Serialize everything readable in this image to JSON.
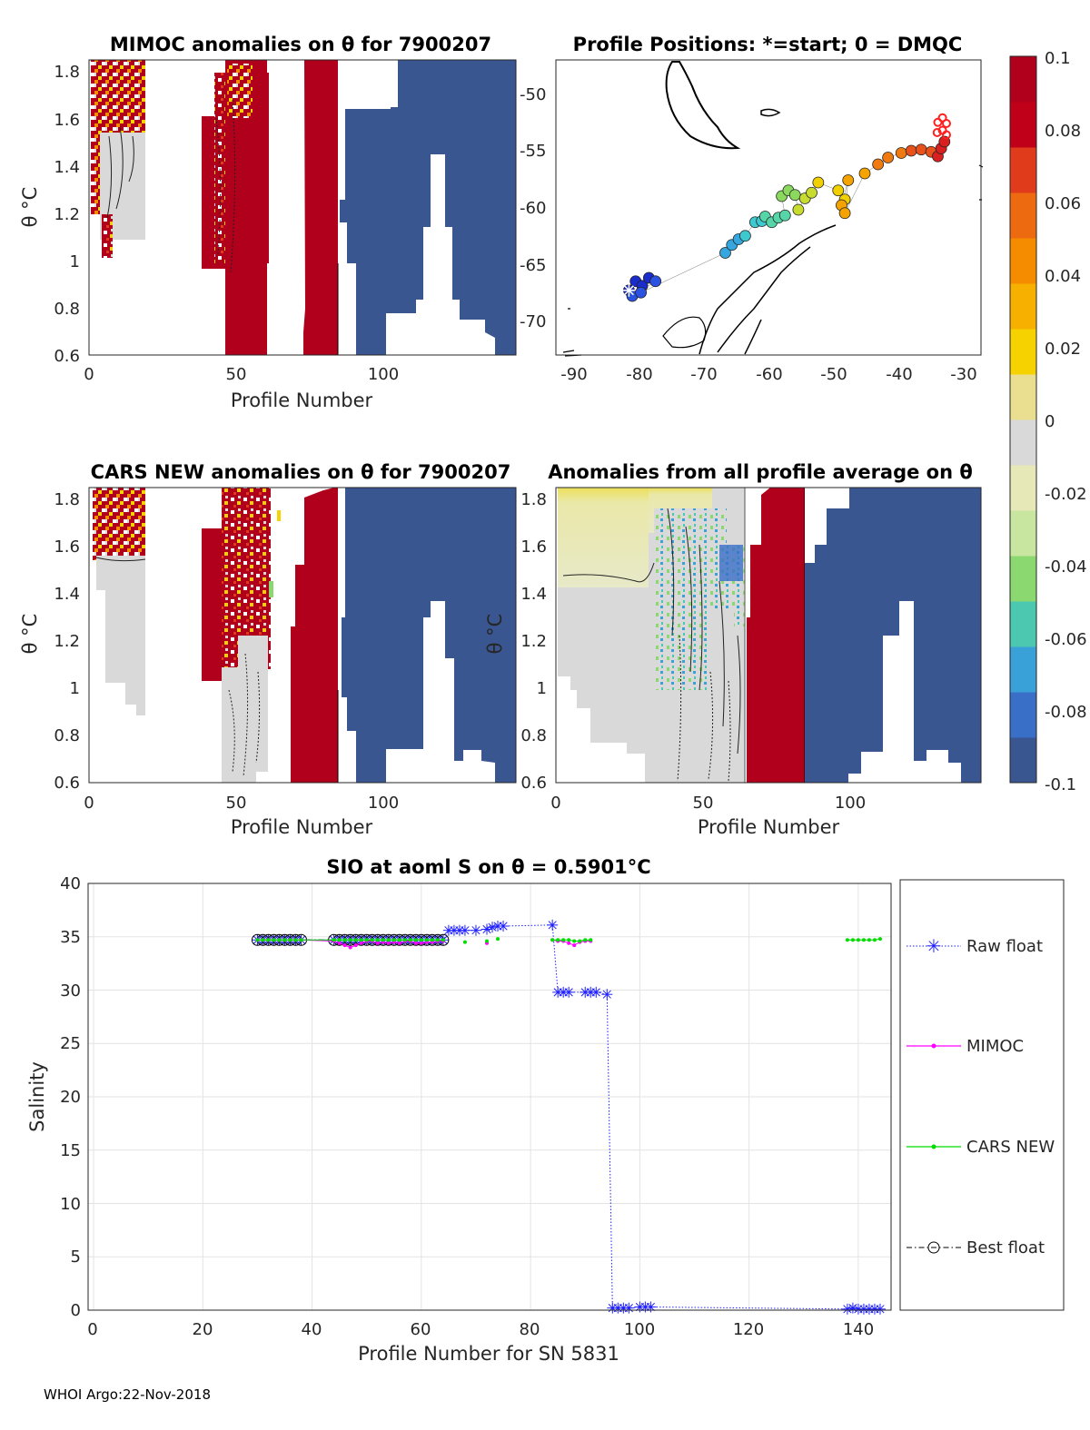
{
  "footer": "WHOI Argo:22-Nov-2018",
  "colors": {
    "raw": "#1f1fff",
    "mimoc": "#ff00ff",
    "cars": "#00dd00",
    "best": "#000000",
    "high": "#b0001c",
    "low": "#3a5690",
    "zero": "#d9d9d9"
  },
  "colorbar": {
    "ticks": [
      "0.1",
      "0.08",
      "0.06",
      "0.04",
      "0.02",
      "0",
      "-0.02",
      "-0.04",
      "-0.06",
      "-0.08",
      "-0.1"
    ],
    "range": [
      -0.1,
      0.1
    ],
    "colors": [
      "#3a5690",
      "#3a6fc8",
      "#3aa0d8",
      "#4cc8b0",
      "#8cd870",
      "#c8e6a0",
      "#e6e8b8",
      "#d9d9d9",
      "#eadf90",
      "#f5d200",
      "#f8b000",
      "#f58c00",
      "#ee6a10",
      "#e03c1c",
      "#c00018",
      "#b0001c"
    ]
  },
  "panels": {
    "mimoc": {
      "title": "MIMOC anomalies on θ  for 7900207",
      "xlabel": "Profile Number",
      "ylabel": "θ °C",
      "xticks": [
        "0",
        "50",
        "100"
      ],
      "yticks": [
        "1.8",
        "1.6",
        "1.4",
        "1.2",
        "1",
        "0.8",
        "0.6"
      ]
    },
    "positions": {
      "title": "Profile Positions: *=start; 0 = DMQC",
      "xticks": [
        "-90",
        "-80",
        "-70",
        "-60",
        "-50",
        "-40",
        "-30"
      ],
      "yticks": [
        "-50",
        "-55",
        "-60",
        "-65",
        "-70"
      ]
    },
    "cars": {
      "title": "CARS NEW anomalies on θ for 7900207",
      "xlabel": "Profile Number",
      "ylabel": "θ °C",
      "xticks": [
        "0",
        "50",
        "100"
      ],
      "yticks": [
        "1.8",
        "1.6",
        "1.4",
        "1.2",
        "1",
        "0.8",
        "0.6"
      ]
    },
    "average": {
      "title": "Anomalies from all profile average on θ",
      "xlabel": "Profile Number",
      "ylabel": "θ °C",
      "xticks": [
        "0",
        "50",
        "100"
      ],
      "yticks": [
        "1.8",
        "1.6",
        "1.4",
        "1.2",
        "1",
        "0.8",
        "0.6"
      ]
    }
  },
  "chart_data": [
    {
      "type": "heatmap",
      "title": "MIMOC anomalies on θ  for 7900207",
      "xlabel": "Profile Number",
      "ylabel": "θ °C",
      "xlim": [
        0,
        145
      ],
      "ylim": [
        0.59,
        1.85
      ],
      "blocks": [
        {
          "x0": 3,
          "x1": 11,
          "y0": 1.03,
          "y1": 1.85,
          "class": "noisy-high"
        },
        {
          "x0": 11,
          "x1": 20,
          "y0": 1.45,
          "y1": 1.85,
          "class": "noisy-high"
        },
        {
          "x0": 13,
          "x1": 20,
          "y0": 1.09,
          "y1": 1.45,
          "class": "zero"
        },
        {
          "x0": 40,
          "x1": 47,
          "y0": 0.97,
          "y1": 1.62,
          "class": "high"
        },
        {
          "x0": 47,
          "x1": 60,
          "y0": 0.59,
          "y1": 1.85,
          "class": "noisy-high"
        },
        {
          "x0": 72,
          "x1": 85,
          "y0": 0.59,
          "y1": 1.85,
          "class": "high"
        },
        {
          "x0": 84,
          "x1": 145,
          "y0": 0.59,
          "y1": 1.85,
          "class": "low"
        }
      ]
    },
    {
      "type": "scatter",
      "title": "Profile Positions: *=start; 0 = DMQC",
      "xlim": [
        -92,
        -28
      ],
      "ylim": [
        -73,
        -47
      ],
      "points": [
        [
          -81,
          -67.3
        ],
        [
          -80,
          -66.5
        ],
        [
          -79,
          -66.9
        ],
        [
          -78,
          -66.2
        ],
        [
          -77,
          -66.5
        ],
        [
          -80.5,
          -67.8
        ],
        [
          -79.2,
          -67.5
        ],
        [
          -66.5,
          -64
        ],
        [
          -65.5,
          -63.3
        ],
        [
          -64.5,
          -62.8
        ],
        [
          -63.5,
          -62.5
        ],
        [
          -62,
          -61.3
        ],
        [
          -61,
          -61.2
        ],
        [
          -60.5,
          -60.8
        ],
        [
          -59.5,
          -61.3
        ],
        [
          -58.5,
          -60.9
        ],
        [
          -57.5,
          -60.7
        ],
        [
          -58,
          -59
        ],
        [
          -57,
          -58.5
        ],
        [
          -56,
          -58.9
        ],
        [
          -55.5,
          -60.2
        ],
        [
          -54.5,
          -59.2
        ],
        [
          -53.5,
          -58.7
        ],
        [
          -52.5,
          -57.8
        ],
        [
          -49.5,
          -58.5
        ],
        [
          -48.5,
          -59.3
        ],
        [
          -49,
          -59.8
        ],
        [
          -48,
          -57.6
        ],
        [
          -48.5,
          -60.5
        ],
        [
          -45.5,
          -57
        ],
        [
          -43.5,
          -56.2
        ],
        [
          -42,
          -55.6
        ],
        [
          -40,
          -55.2
        ],
        [
          -38.5,
          -55
        ],
        [
          -37,
          -54.9
        ],
        [
          -35.5,
          -55.1
        ],
        [
          -34.5,
          -55.5
        ],
        [
          -34,
          -54.8
        ],
        [
          -33.5,
          -54.2
        ]
      ],
      "start_marker": [
        -81,
        -67.3
      ]
    },
    {
      "type": "heatmap",
      "title": "CARS NEW anomalies on θ for 7900207",
      "xlabel": "Profile Number",
      "ylabel": "θ °C",
      "xlim": [
        0,
        145
      ],
      "ylim": [
        0.59,
        1.85
      ],
      "blocks": [
        {
          "x0": 3,
          "x1": 19,
          "y0": 1.62,
          "y1": 1.85,
          "class": "noisy-high"
        },
        {
          "x0": 5,
          "x1": 19,
          "y0": 0.87,
          "y1": 1.62,
          "class": "zero"
        },
        {
          "x0": 38,
          "x1": 46,
          "y0": 1.04,
          "y1": 1.68,
          "class": "high"
        },
        {
          "x0": 46,
          "x1": 61,
          "y0": 0.59,
          "y1": 1.85,
          "class": "noisy-high"
        },
        {
          "x0": 68,
          "x1": 85,
          "y0": 0.59,
          "y1": 1.83,
          "class": "high"
        },
        {
          "x0": 84,
          "x1": 145,
          "y0": 0.59,
          "y1": 1.85,
          "class": "low"
        }
      ]
    },
    {
      "type": "heatmap",
      "title": "Anomalies from all profile average on θ",
      "xlabel": "Profile Number",
      "ylabel": "θ °C",
      "xlim": [
        0,
        145
      ],
      "ylim": [
        0.59,
        1.85
      ],
      "blocks": [
        {
          "x0": 2,
          "x1": 50,
          "y0": 1.48,
          "y1": 1.85,
          "class": "slightly-positive"
        },
        {
          "x0": 2,
          "x1": 65,
          "y0": 0.59,
          "y1": 1.48,
          "class": "zero"
        },
        {
          "x0": 55,
          "x1": 65,
          "y0": 1.3,
          "y1": 1.7,
          "class": "negative"
        },
        {
          "x0": 65,
          "x1": 85,
          "y0": 0.59,
          "y1": 1.85,
          "class": "high"
        },
        {
          "x0": 85,
          "x1": 145,
          "y0": 0.59,
          "y1": 1.85,
          "class": "low"
        }
      ]
    },
    {
      "type": "line",
      "title": "SIO at aoml S on θ = 0.5901°C",
      "xlabel": "Profile Number for SN 5831",
      "ylabel": "Salinity",
      "xlim": [
        -1,
        146
      ],
      "ylim": [
        0,
        40
      ],
      "xticks": [
        "0",
        "20",
        "40",
        "60",
        "80",
        "100",
        "120",
        "140"
      ],
      "yticks": [
        "40",
        "35",
        "30",
        "25",
        "20",
        "15",
        "10",
        "5",
        "0"
      ],
      "grid": true,
      "legend": "right-outside",
      "series": [
        {
          "name": "Raw float",
          "style": "blue dotted, asterisk markers",
          "x": [
            30,
            31,
            32,
            33,
            34,
            35,
            36,
            37,
            38,
            44,
            45,
            46,
            47,
            48,
            49,
            50,
            51,
            52,
            53,
            54,
            55,
            56,
            57,
            58,
            59,
            60,
            61,
            62,
            63,
            64,
            65,
            66,
            67,
            68,
            70,
            72,
            73,
            74,
            75,
            84,
            85,
            86,
            87,
            90,
            91,
            92,
            94,
            95,
            96,
            97,
            98,
            100,
            101,
            102,
            138,
            139,
            140,
            141,
            142,
            143,
            144
          ],
          "y": [
            34.7,
            34.7,
            34.7,
            34.7,
            34.7,
            34.7,
            34.7,
            34.7,
            34.7,
            34.7,
            34.7,
            34.7,
            34.7,
            34.7,
            34.7,
            34.7,
            34.7,
            34.7,
            34.7,
            34.7,
            34.7,
            34.7,
            34.7,
            34.7,
            34.7,
            34.7,
            34.7,
            34.7,
            34.7,
            34.7,
            35.6,
            35.6,
            35.6,
            35.6,
            35.6,
            35.7,
            35.9,
            36.0,
            36.0,
            36.1,
            29.8,
            29.8,
            29.8,
            29.8,
            29.8,
            29.8,
            29.6,
            0.2,
            0.2,
            0.2,
            0.2,
            0.3,
            0.3,
            0.3,
            0.1,
            0.2,
            0.1,
            0.1,
            0.1,
            0.1,
            0.1
          ]
        },
        {
          "name": "MIMOC",
          "style": "magenta line, dot markers",
          "x": [
            30,
            31,
            32,
            33,
            34,
            35,
            36,
            37,
            38,
            44,
            45,
            46,
            47,
            48,
            49,
            50,
            51,
            52,
            53,
            54,
            55,
            56,
            57,
            58,
            59,
            60,
            61,
            62,
            63,
            64,
            72,
            84,
            85,
            86,
            87,
            88,
            89,
            90,
            91
          ],
          "y": [
            34.7,
            34.7,
            34.7,
            34.7,
            34.7,
            34.7,
            34.7,
            34.7,
            34.7,
            34.6,
            34.4,
            34.2,
            34.0,
            34.2,
            34.4,
            34.6,
            34.6,
            34.4,
            34.5,
            34.4,
            34.5,
            34.4,
            34.6,
            34.6,
            34.4,
            34.4,
            34.5,
            34.5,
            34.6,
            34.6,
            34.4,
            34.7,
            34.6,
            34.6,
            34.4,
            34.2,
            34.5,
            34.6,
            34.6
          ]
        },
        {
          "name": "CARS NEW",
          "style": "green line, dot markers",
          "x": [
            30,
            31,
            32,
            33,
            34,
            35,
            36,
            37,
            38,
            44,
            45,
            46,
            47,
            48,
            49,
            50,
            51,
            52,
            53,
            54,
            55,
            56,
            57,
            58,
            59,
            60,
            61,
            62,
            63,
            64,
            68,
            72,
            74,
            84,
            85,
            86,
            87,
            88,
            89,
            90,
            91,
            138,
            139,
            140,
            141,
            142,
            143,
            144
          ],
          "y": [
            34.7,
            34.7,
            34.7,
            34.7,
            34.7,
            34.7,
            34.7,
            34.7,
            34.7,
            34.7,
            34.7,
            34.7,
            34.7,
            34.7,
            34.7,
            34.7,
            34.7,
            34.7,
            34.7,
            34.7,
            34.7,
            34.7,
            34.7,
            34.7,
            34.7,
            34.7,
            34.7,
            34.7,
            34.7,
            34.7,
            34.5,
            34.6,
            34.8,
            34.7,
            34.7,
            34.7,
            34.7,
            34.6,
            34.6,
            34.7,
            34.7,
            34.7,
            34.7,
            34.7,
            34.7,
            34.7,
            34.7,
            34.8
          ]
        },
        {
          "name": "Best float",
          "style": "black dash-dot, open circle markers",
          "x": [
            30,
            31,
            32,
            33,
            34,
            35,
            36,
            37,
            38,
            44,
            45,
            46,
            47,
            48,
            49,
            50,
            51,
            52,
            53,
            54,
            55,
            56,
            57,
            58,
            59,
            60,
            61,
            62,
            63,
            64
          ],
          "y": [
            34.7,
            34.7,
            34.7,
            34.7,
            34.7,
            34.7,
            34.7,
            34.7,
            34.7,
            34.7,
            34.7,
            34.7,
            34.7,
            34.7,
            34.7,
            34.7,
            34.7,
            34.7,
            34.7,
            34.7,
            34.7,
            34.7,
            34.7,
            34.7,
            34.7,
            34.7,
            34.7,
            34.7,
            34.7,
            34.7
          ]
        }
      ]
    }
  ]
}
